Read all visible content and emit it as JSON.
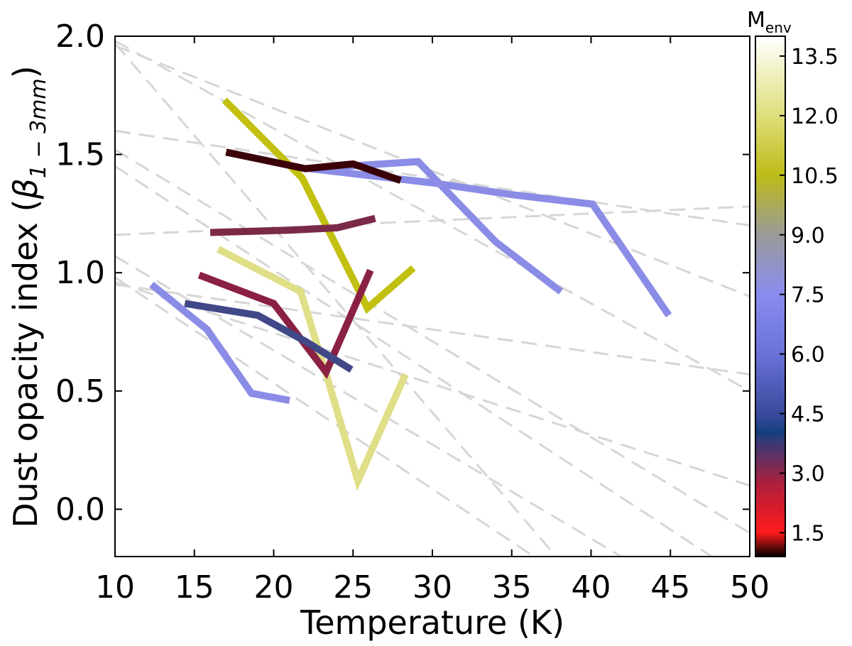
{
  "chart_data": {
    "type": "line",
    "xlabel": "Temperature (K)",
    "ylabel_main": "Dust opacity index (",
    "ylabel_symbol": "β",
    "ylabel_sub": "1 − 3mm",
    "ylabel_close": ")",
    "xlim": [
      10,
      50
    ],
    "ylim": [
      -0.2,
      2.0
    ],
    "x_ticks": [
      10,
      15,
      20,
      25,
      30,
      35,
      40,
      45,
      50
    ],
    "y_ticks": [
      0.0,
      0.5,
      1.0,
      1.5,
      2.0
    ],
    "x_tick_labels": [
      "10",
      "15",
      "20",
      "25",
      "30",
      "35",
      "40",
      "45",
      "50"
    ],
    "y_tick_labels": [
      "0.0",
      "0.5",
      "1.0",
      "1.5",
      "2.0"
    ],
    "colorbar": {
      "label_main": "M",
      "label_sub": "env",
      "range": [
        0.9,
        14.0
      ],
      "ticks": [
        1.5,
        3.0,
        4.5,
        6.0,
        7.5,
        9.0,
        10.5,
        12.0,
        13.5
      ],
      "tick_labels": [
        "1.5",
        "3.0",
        "4.5",
        "6.0",
        "7.5",
        "9.0",
        "10.5",
        "12.0",
        "13.5"
      ],
      "stops": [
        {
          "v": 0.9,
          "color": "#000000"
        },
        {
          "v": 1.5,
          "color": "#ff1a1a"
        },
        {
          "v": 2.7,
          "color": "#b01f3c"
        },
        {
          "v": 3.9,
          "color": "#2a3c7a"
        },
        {
          "v": 4.0,
          "color": "#133d7c"
        },
        {
          "v": 4.5,
          "color": "#3a4a9c"
        },
        {
          "v": 6.0,
          "color": "#6a72d8"
        },
        {
          "v": 7.5,
          "color": "#8a8cef"
        },
        {
          "v": 9.0,
          "color": "#9a9a9a"
        },
        {
          "v": 10.5,
          "color": "#bdbb18"
        },
        {
          "v": 12.0,
          "color": "#dede7a"
        },
        {
          "v": 14.0,
          "color": "#ffffff"
        }
      ]
    },
    "series": [
      {
        "color": "#8a8ce6",
        "points": [
          [
            22.3,
            1.44
          ],
          [
            29.1,
            1.47
          ],
          [
            34.0,
            1.13
          ],
          [
            38.1,
            0.92
          ]
        ]
      },
      {
        "color": "#8a8ce6",
        "points": [
          [
            22.3,
            1.44
          ],
          [
            30.0,
            1.38
          ],
          [
            35.0,
            1.33
          ],
          [
            40.1,
            1.29
          ],
          [
            44.9,
            0.82
          ]
        ]
      },
      {
        "color": "#8a8ce6",
        "points": [
          [
            12.3,
            0.95
          ],
          [
            15.8,
            0.76
          ],
          [
            18.6,
            0.49
          ],
          [
            21.0,
            0.46
          ]
        ]
      },
      {
        "color": "#c2c010",
        "points": [
          [
            16.9,
            1.73
          ],
          [
            21.8,
            1.4
          ],
          [
            25.4,
            0.92
          ],
          [
            25.9,
            0.85
          ],
          [
            28.8,
            1.02
          ]
        ]
      },
      {
        "color": "#e0df88",
        "points": [
          [
            16.5,
            1.1
          ],
          [
            21.7,
            0.92
          ],
          [
            23.4,
            0.55
          ],
          [
            25.3,
            0.12
          ],
          [
            28.3,
            0.57
          ]
        ]
      },
      {
        "color": "#3a0008",
        "points": [
          [
            17.0,
            1.51
          ],
          [
            22.0,
            1.44
          ],
          [
            25.0,
            1.46
          ],
          [
            28.0,
            1.39
          ]
        ]
      },
      {
        "color": "#7a2a48",
        "points": [
          [
            16.0,
            1.17
          ],
          [
            21.0,
            1.18
          ],
          [
            24.0,
            1.19
          ],
          [
            26.4,
            1.23
          ]
        ]
      },
      {
        "color": "#8a2042",
        "points": [
          [
            15.3,
            0.99
          ],
          [
            20.0,
            0.87
          ],
          [
            23.3,
            0.58
          ],
          [
            26.1,
            1.01
          ]
        ]
      },
      {
        "color": "#404888",
        "points": [
          [
            14.4,
            0.87
          ],
          [
            19.0,
            0.82
          ],
          [
            22.0,
            0.71
          ],
          [
            24.9,
            0.59
          ]
        ]
      }
    ],
    "reference_lines": [
      [
        [
          10,
          1.97
        ],
        [
          37.8,
          -0.2
        ]
      ],
      [
        [
          10,
          1.96
        ],
        [
          50,
          0.9
        ]
      ],
      [
        [
          10,
          1.98
        ],
        [
          50,
          0.5
        ]
      ],
      [
        [
          10,
          1.6
        ],
        [
          50,
          1.2
        ]
      ],
      [
        [
          10,
          1.52
        ],
        [
          50,
          -0.1
        ]
      ],
      [
        [
          10,
          1.16
        ],
        [
          50,
          1.28
        ]
      ],
      [
        [
          10,
          0.95
        ],
        [
          50,
          0.57
        ]
      ],
      [
        [
          10,
          1.07
        ],
        [
          41.9,
          -0.2
        ]
      ],
      [
        [
          10,
          0.96
        ],
        [
          50,
          0.1
        ]
      ],
      [
        [
          10,
          1.45
        ],
        [
          47.6,
          -0.2
        ]
      ],
      [
        [
          10,
          0.98
        ],
        [
          36.4,
          -0.2
        ]
      ]
    ]
  }
}
